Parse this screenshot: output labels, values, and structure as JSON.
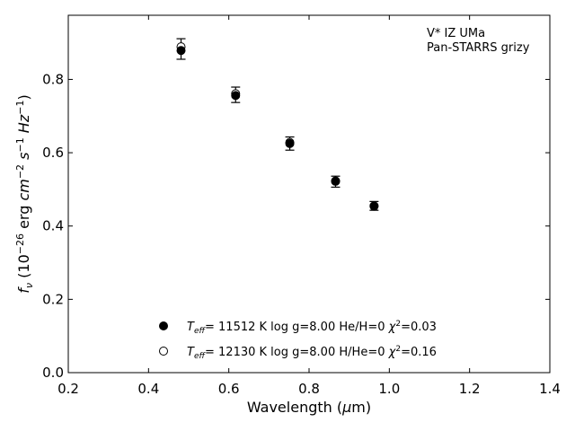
{
  "chart_data": {
    "type": "scatter",
    "xlabel": "Wavelength (μm)",
    "ylabel": "f_ν (10^-26 erg cm^-2 s^-1 Hz^-1)",
    "xlim": [
      0.2,
      1.4
    ],
    "ylim": [
      0.0,
      0.975
    ],
    "x_ticks": [
      "0.2",
      "0.4",
      "0.6",
      "0.8",
      "1.0",
      "1.2",
      "1.4"
    ],
    "y_ticks": [
      "0.0",
      "0.2",
      "0.4",
      "0.6",
      "0.8"
    ],
    "annotation": [
      "V* IZ UMa",
      "Pan-STARRS grizy"
    ],
    "observed": {
      "x": [
        0.481,
        0.617,
        0.752,
        0.866,
        0.962
      ],
      "y": [
        0.883,
        0.758,
        0.625,
        0.521,
        0.455
      ],
      "yerr": [
        0.028,
        0.021,
        0.018,
        0.015,
        0.012
      ]
    },
    "series": [
      {
        "name": "T_eff= 11512 K  log g=8.00  He/H=0  χ²=0.03",
        "marker": "filled",
        "x": [
          0.481,
          0.617,
          0.752,
          0.866,
          0.962
        ],
        "y": [
          0.879,
          0.756,
          0.625,
          0.522,
          0.455
        ]
      },
      {
        "name": "T_eff= 12130 K  log g=8.00  H/He=0  χ²=0.16",
        "marker": "open",
        "x": [
          0.481,
          0.617,
          0.752,
          0.866,
          0.962
        ],
        "y": [
          0.889,
          0.761,
          0.628,
          0.523,
          0.454
        ]
      }
    ],
    "legend": [
      {
        "teff": "11512",
        "logg": "8.00",
        "comp_top": "He",
        "comp_bot": "H",
        "comp_val": "0",
        "chi2": "0.03"
      },
      {
        "teff": "12130",
        "logg": "8.00",
        "comp_top": "H",
        "comp_bot": "He",
        "comp_val": "0",
        "chi2": "0.16"
      }
    ],
    "grid": false,
    "colors": {
      "marker": "#000000",
      "background": "#ffffff"
    }
  }
}
